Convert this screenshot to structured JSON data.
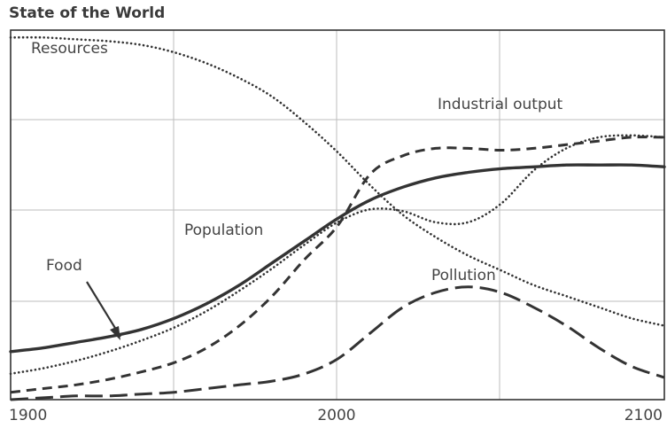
{
  "chart_data": {
    "type": "line",
    "title": "State of the World",
    "xlabel": "",
    "ylabel": "",
    "xlim": [
      1900,
      2100
    ],
    "ylim": [
      0,
      100
    ],
    "x_ticks": [
      "1900",
      "2000",
      "2100"
    ],
    "grid": true,
    "legend": "none",
    "series": [
      {
        "name": "Resources",
        "style": "dotted",
        "x": [
          1900,
          1910,
          1920,
          1930,
          1940,
          1950,
          1960,
          1970,
          1980,
          1990,
          2000,
          2010,
          2020,
          2030,
          2040,
          2050,
          2060,
          2070,
          2080,
          2090,
          2100
        ],
        "y": [
          98,
          98,
          97.5,
          97,
          96,
          94,
          91,
          87,
          82,
          75,
          67,
          58,
          50,
          44,
          39,
          35,
          31,
          28,
          25,
          22,
          20
        ]
      },
      {
        "name": "Industrial output",
        "style": "dashed",
        "x": [
          1900,
          1910,
          1920,
          1930,
          1940,
          1950,
          1960,
          1970,
          1980,
          1990,
          2000,
          2010,
          2020,
          2030,
          2040,
          2050,
          2060,
          2070,
          2080,
          2090,
          2100
        ],
        "y": [
          2,
          3,
          4,
          5.5,
          7.5,
          10,
          14,
          20,
          28,
          38,
          47,
          61,
          66,
          68,
          68,
          67.5,
          68,
          69,
          70,
          71,
          71
        ]
      },
      {
        "name": "Population",
        "style": "solid",
        "x": [
          1900,
          1910,
          1920,
          1930,
          1940,
          1950,
          1960,
          1970,
          1980,
          1990,
          2000,
          2010,
          2020,
          2030,
          2040,
          2050,
          2060,
          2070,
          2080,
          2090,
          2100
        ],
        "y": [
          13,
          14,
          15.5,
          17,
          19,
          22,
          26,
          31,
          37,
          43,
          49,
          54,
          57.5,
          60,
          61.5,
          62.5,
          63,
          63.5,
          63.5,
          63.5,
          63
        ]
      },
      {
        "name": "Food",
        "style": "dotted",
        "x": [
          1900,
          1910,
          1920,
          1930,
          1940,
          1950,
          1960,
          1970,
          1980,
          1990,
          2000,
          2010,
          2020,
          2030,
          2040,
          2050,
          2060,
          2070,
          2080,
          2090,
          2100
        ],
        "y": [
          7,
          8.5,
          10.5,
          13,
          16,
          19.5,
          24,
          29.5,
          35.5,
          42,
          48,
          51.5,
          51,
          48,
          48,
          53,
          62,
          68,
          71,
          71.5,
          71
        ]
      },
      {
        "name": "Pollution",
        "style": "long-dash",
        "x": [
          1900,
          1910,
          1920,
          1930,
          1940,
          1950,
          1960,
          1970,
          1980,
          1990,
          2000,
          2010,
          2020,
          2030,
          2040,
          2050,
          2060,
          2070,
          2080,
          2090,
          2100
        ],
        "y": [
          0,
          0.5,
          1,
          1,
          1.5,
          2,
          3,
          4,
          5,
          7,
          11,
          18,
          25,
          29,
          30.5,
          29,
          25,
          20,
          14,
          9,
          6
        ]
      }
    ],
    "labels": {
      "resources": "Resources",
      "industrial_output": "Industrial output",
      "population": "Population",
      "food": "Food",
      "pollution": "Pollution"
    }
  }
}
